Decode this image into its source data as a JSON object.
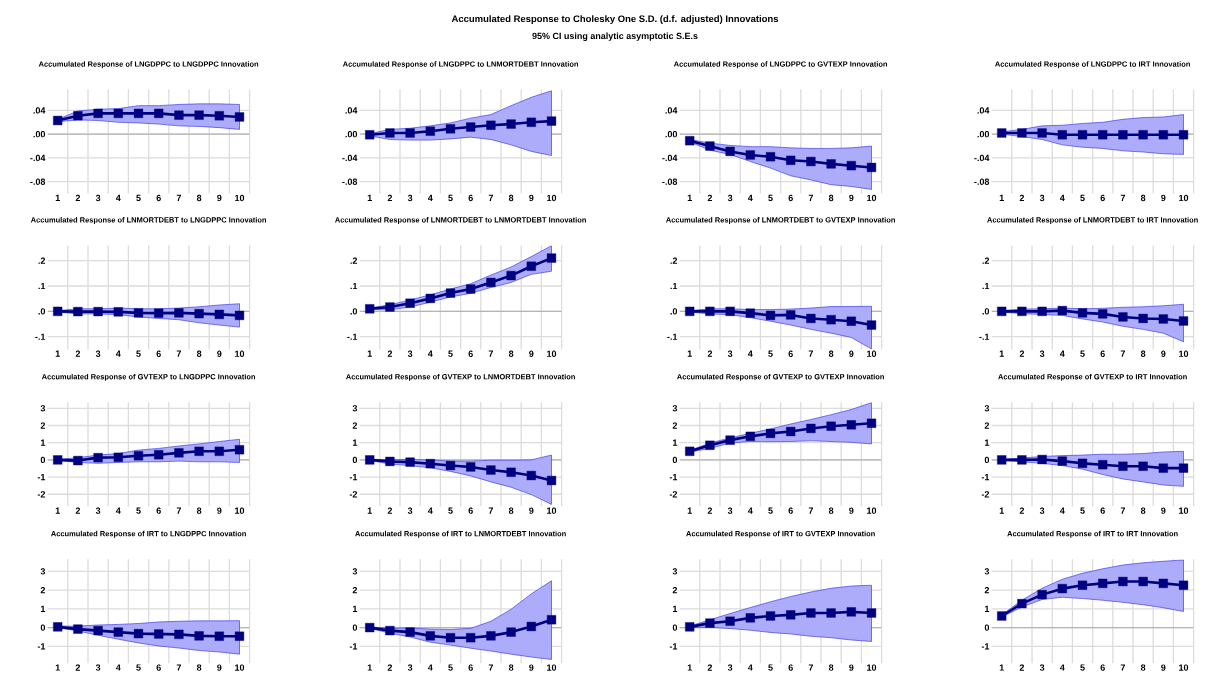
{
  "chart_data": [
    {
      "type": "other",
      "title": "Accumulated Response to Cholesky One S.D. (d.f. adjusted) Innovations",
      "subtitle": "95% CI using analytic asymptotic S.E.s"
    },
    {
      "type": "line",
      "title": "Accumulated Response of LNGDPPC to LNGDPPC Innovation",
      "categories": [
        "1",
        "2",
        "3",
        "4",
        "5",
        "6",
        "7",
        "8",
        "9",
        "10"
      ],
      "series": [
        {
          "color": "#000080",
          "values": [
            0.023,
            0.031,
            0.035,
            0.035,
            0.035,
            0.035,
            0.032,
            0.032,
            0.031,
            0.029
          ],
          "lower": [
            0.021,
            0.024,
            0.023,
            0.02,
            0.019,
            0.017,
            0.014,
            0.013,
            0.011,
            0.008
          ],
          "upper": [
            0.025,
            0.039,
            0.042,
            0.043,
            0.048,
            0.048,
            0.05,
            0.051,
            0.051,
            0.05
          ]
        }
      ],
      "ylim": [
        -0.1,
        0.075
      ],
      "yticks": [
        {
          "value": -0.08,
          "label": "-.08"
        },
        {
          "value": -0.04,
          "label": "-.04"
        },
        {
          "value": 0,
          "label": ".00"
        },
        {
          "value": 0.04,
          "label": ".04"
        }
      ],
      "grid": true,
      "marker": "square",
      "ref_lines": [
        {
          "axis": "y",
          "value": 0,
          "color": "#b4b4b4"
        }
      ]
    },
    {
      "type": "line",
      "title": "Accumulated Response of LNGDPPC to LNMORTDEBT Innovation",
      "categories": [
        "1",
        "2",
        "3",
        "4",
        "5",
        "6",
        "7",
        "8",
        "9",
        "10"
      ],
      "series": [
        {
          "color": "#000080",
          "values": [
            -0.001,
            0.002,
            0.002,
            0.005,
            0.009,
            0.012,
            0.015,
            0.017,
            0.02,
            0.022
          ],
          "lower": [
            -0.003,
            -0.009,
            -0.01,
            -0.01,
            -0.008,
            -0.005,
            -0.009,
            -0.018,
            -0.029,
            -0.036
          ],
          "upper": [
            0.001,
            0.008,
            0.01,
            0.014,
            0.019,
            0.027,
            0.033,
            0.048,
            0.062,
            0.073
          ]
        }
      ],
      "ylim": [
        -0.1,
        0.075
      ],
      "yticks": [
        {
          "value": -0.08,
          "label": "-.08"
        },
        {
          "value": -0.04,
          "label": "-.04"
        },
        {
          "value": 0,
          "label": ".00"
        },
        {
          "value": 0.04,
          "label": ".04"
        }
      ],
      "grid": true,
      "marker": "square",
      "ref_lines": [
        {
          "axis": "y",
          "value": 0,
          "color": "#b4b4b4"
        }
      ]
    },
    {
      "type": "line",
      "title": "Accumulated Response of LNGDPPC to GVTEXP Innovation",
      "categories": [
        "1",
        "2",
        "3",
        "4",
        "5",
        "6",
        "7",
        "8",
        "9",
        "10"
      ],
      "series": [
        {
          "color": "#000080",
          "values": [
            -0.011,
            -0.02,
            -0.029,
            -0.035,
            -0.038,
            -0.044,
            -0.046,
            -0.05,
            -0.053,
            -0.056
          ],
          "lower": [
            -0.013,
            -0.027,
            -0.034,
            -0.046,
            -0.057,
            -0.07,
            -0.077,
            -0.085,
            -0.088,
            -0.093
          ],
          "upper": [
            -0.009,
            -0.015,
            -0.019,
            -0.021,
            -0.021,
            -0.023,
            -0.024,
            -0.024,
            -0.023,
            -0.02
          ]
        }
      ],
      "ylim": [
        -0.1,
        0.075
      ],
      "yticks": [
        {
          "value": -0.08,
          "label": "-.08"
        },
        {
          "value": -0.04,
          "label": "-.04"
        },
        {
          "value": 0,
          "label": ".00"
        },
        {
          "value": 0.04,
          "label": ".04"
        }
      ],
      "grid": true,
      "marker": "square",
      "ref_lines": [
        {
          "axis": "y",
          "value": 0,
          "color": "#b4b4b4"
        }
      ]
    },
    {
      "type": "line",
      "title": "Accumulated Response of LNGDPPC to IRT Innovation",
      "categories": [
        "1",
        "2",
        "3",
        "4",
        "5",
        "6",
        "7",
        "8",
        "9",
        "10"
      ],
      "series": [
        {
          "color": "#000080",
          "values": [
            0.002,
            0.002,
            0.002,
            -0.001,
            -0.001,
            -0.001,
            -0.001,
            -0.001,
            -0.001,
            -0.001
          ],
          "lower": [
            0.0,
            -0.004,
            -0.009,
            -0.018,
            -0.022,
            -0.024,
            -0.028,
            -0.03,
            -0.033,
            -0.034
          ],
          "upper": [
            0.004,
            0.008,
            0.014,
            0.015,
            0.018,
            0.02,
            0.025,
            0.028,
            0.029,
            0.033
          ]
        }
      ],
      "ylim": [
        -0.1,
        0.075
      ],
      "yticks": [
        {
          "value": -0.08,
          "label": "-.08"
        },
        {
          "value": -0.04,
          "label": "-.04"
        },
        {
          "value": 0,
          "label": ".00"
        },
        {
          "value": 0.04,
          "label": ".04"
        }
      ],
      "grid": true,
      "marker": "square",
      "ref_lines": [
        {
          "axis": "y",
          "value": 0,
          "color": "#b4b4b4"
        }
      ]
    },
    {
      "type": "line",
      "title": "Accumulated Response of LNMORTDEBT to LNGDPPC Innovation",
      "categories": [
        "1",
        "2",
        "3",
        "4",
        "5",
        "6",
        "7",
        "8",
        "9",
        "10"
      ],
      "series": [
        {
          "color": "#000080",
          "values": [
            0.0,
            -0.001,
            -0.001,
            -0.002,
            -0.006,
            -0.007,
            -0.006,
            -0.009,
            -0.012,
            -0.016
          ],
          "lower": [
            -0.003,
            -0.01,
            -0.01,
            -0.013,
            -0.022,
            -0.028,
            -0.033,
            -0.045,
            -0.054,
            -0.062
          ],
          "upper": [
            0.003,
            0.01,
            0.01,
            0.013,
            0.01,
            0.01,
            0.013,
            0.018,
            0.025,
            0.03
          ]
        }
      ],
      "ylim": [
        -0.15,
        0.26
      ],
      "yticks": [
        {
          "value": -0.1,
          "label": "-.1"
        },
        {
          "value": 0,
          "label": ".0"
        },
        {
          "value": 0.1,
          "label": ".1"
        },
        {
          "value": 0.2,
          "label": ".2"
        }
      ],
      "grid": true,
      "marker": "square",
      "ref_lines": [
        {
          "axis": "y",
          "value": 0,
          "color": "#b4b4b4"
        }
      ]
    },
    {
      "type": "line",
      "title": "Accumulated Response of LNMORTDEBT to LNMORTDEBT Innovation",
      "categories": [
        "1",
        "2",
        "3",
        "4",
        "5",
        "6",
        "7",
        "8",
        "9",
        "10"
      ],
      "series": [
        {
          "color": "#000080",
          "values": [
            0.01,
            0.017,
            0.032,
            0.051,
            0.072,
            0.088,
            0.114,
            0.141,
            0.178,
            0.21
          ],
          "lower": [
            0.007,
            0.006,
            0.017,
            0.036,
            0.057,
            0.071,
            0.094,
            0.114,
            0.146,
            0.158
          ],
          "upper": [
            0.013,
            0.026,
            0.045,
            0.065,
            0.088,
            0.109,
            0.143,
            0.175,
            0.216,
            0.259
          ]
        }
      ],
      "ylim": [
        -0.15,
        0.26
      ],
      "yticks": [
        {
          "value": -0.1,
          "label": "-.1"
        },
        {
          "value": 0,
          "label": ".0"
        },
        {
          "value": 0.1,
          "label": ".1"
        },
        {
          "value": 0.2,
          "label": ".2"
        }
      ],
      "grid": true,
      "marker": "square",
      "ref_lines": [
        {
          "axis": "y",
          "value": 0,
          "color": "#b4b4b4"
        }
      ]
    },
    {
      "type": "line",
      "title": "Accumulated Response of LNMORTDEBT to GVTEXP Innovation",
      "categories": [
        "1",
        "2",
        "3",
        "4",
        "5",
        "6",
        "7",
        "8",
        "9",
        "10"
      ],
      "series": [
        {
          "color": "#000080",
          "values": [
            0.0,
            0.0,
            0.0,
            -0.007,
            -0.016,
            -0.014,
            -0.028,
            -0.033,
            -0.039,
            -0.054
          ],
          "lower": [
            -0.003,
            -0.01,
            -0.013,
            -0.025,
            -0.039,
            -0.054,
            -0.071,
            -0.086,
            -0.103,
            -0.148
          ],
          "upper": [
            0.003,
            0.01,
            0.01,
            0.007,
            0.007,
            0.009,
            0.013,
            0.019,
            0.019,
            0.02
          ]
        }
      ],
      "ylim": [
        -0.15,
        0.26
      ],
      "yticks": [
        {
          "value": -0.1,
          "label": "-.1"
        },
        {
          "value": 0,
          "label": ".0"
        },
        {
          "value": 0.1,
          "label": ".1"
        },
        {
          "value": 0.2,
          "label": ".2"
        }
      ],
      "grid": true,
      "marker": "square",
      "ref_lines": [
        {
          "axis": "y",
          "value": 0,
          "color": "#b4b4b4"
        }
      ]
    },
    {
      "type": "line",
      "title": "Accumulated Response of LNMORTDEBT to IRT Innovation",
      "categories": [
        "1",
        "2",
        "3",
        "4",
        "5",
        "6",
        "7",
        "8",
        "9",
        "10"
      ],
      "series": [
        {
          "color": "#000080",
          "values": [
            0.0,
            0.0,
            0.0,
            0.003,
            -0.006,
            -0.01,
            -0.022,
            -0.028,
            -0.03,
            -0.038
          ],
          "lower": [
            -0.003,
            -0.009,
            -0.012,
            -0.016,
            -0.03,
            -0.042,
            -0.059,
            -0.071,
            -0.086,
            -0.12
          ],
          "upper": [
            0.003,
            0.009,
            0.01,
            0.013,
            0.01,
            0.012,
            0.016,
            0.018,
            0.022,
            0.028
          ]
        }
      ],
      "ylim": [
        -0.15,
        0.26
      ],
      "yticks": [
        {
          "value": -0.1,
          "label": "-.1"
        },
        {
          "value": 0,
          "label": ".0"
        },
        {
          "value": 0.1,
          "label": ".1"
        },
        {
          "value": 0.2,
          "label": ".2"
        }
      ],
      "grid": true,
      "marker": "square",
      "ref_lines": [
        {
          "axis": "y",
          "value": 0,
          "color": "#b4b4b4"
        }
      ]
    },
    {
      "type": "line",
      "title": "Accumulated Response of GVTEXP to LNGDPPC Innovation",
      "categories": [
        "1",
        "2",
        "3",
        "4",
        "5",
        "6",
        "7",
        "8",
        "9",
        "10"
      ],
      "series": [
        {
          "color": "#000080",
          "values": [
            0.0,
            -0.04,
            0.13,
            0.15,
            0.24,
            0.3,
            0.41,
            0.5,
            0.5,
            0.59
          ],
          "lower": [
            -0.03,
            -0.15,
            -0.2,
            -0.15,
            -0.11,
            -0.11,
            -0.07,
            -0.11,
            -0.11,
            -0.15
          ],
          "upper": [
            0.03,
            0.13,
            0.28,
            0.37,
            0.57,
            0.67,
            0.81,
            0.93,
            1.07,
            1.2
          ]
        }
      ],
      "ylim": [
        -2.7,
        3.35
      ],
      "yticks": [
        -2,
        -1,
        0,
        1,
        2,
        3
      ],
      "grid": true,
      "marker": "square",
      "ref_lines": [
        {
          "axis": "y",
          "value": 0,
          "color": "#b4b4b4"
        }
      ]
    },
    {
      "type": "line",
      "title": "Accumulated Response of GVTEXP to LNMORTDEBT Innovation",
      "categories": [
        "1",
        "2",
        "3",
        "4",
        "5",
        "6",
        "7",
        "8",
        "9",
        "10"
      ],
      "series": [
        {
          "color": "#000080",
          "values": [
            0.0,
            -0.09,
            -0.13,
            -0.22,
            -0.33,
            -0.41,
            -0.59,
            -0.72,
            -0.91,
            -1.2
          ],
          "lower": [
            -0.03,
            -0.24,
            -0.33,
            -0.46,
            -0.67,
            -0.93,
            -1.28,
            -1.59,
            -2.02,
            -2.59
          ],
          "upper": [
            0.03,
            0.02,
            0.02,
            0.0,
            -0.07,
            -0.07,
            -0.02,
            -0.02,
            0.0,
            0.28
          ]
        }
      ],
      "ylim": [
        -2.7,
        3.35
      ],
      "yticks": [
        -2,
        -1,
        0,
        1,
        2,
        3
      ],
      "grid": true,
      "marker": "square",
      "ref_lines": [
        {
          "axis": "y",
          "value": 0,
          "color": "#b4b4b4"
        }
      ]
    },
    {
      "type": "line",
      "title": "Accumulated Response of GVTEXP to GVTEXP Innovation",
      "categories": [
        "1",
        "2",
        "3",
        "4",
        "5",
        "6",
        "7",
        "8",
        "9",
        "10"
      ],
      "series": [
        {
          "color": "#000080",
          "values": [
            0.5,
            0.85,
            1.15,
            1.37,
            1.54,
            1.65,
            1.83,
            1.96,
            2.04,
            2.13
          ],
          "lower": [
            0.45,
            0.67,
            0.98,
            1.07,
            1.06,
            1.07,
            1.11,
            1.07,
            1.02,
            0.93
          ],
          "upper": [
            0.55,
            0.98,
            1.28,
            1.55,
            1.8,
            2.09,
            2.35,
            2.63,
            2.93,
            3.33
          ]
        }
      ],
      "ylim": [
        -2.7,
        3.35
      ],
      "yticks": [
        -2,
        -1,
        0,
        1,
        2,
        3
      ],
      "grid": true,
      "marker": "square",
      "ref_lines": [
        {
          "axis": "y",
          "value": 0,
          "color": "#b4b4b4"
        }
      ]
    },
    {
      "type": "line",
      "title": "Accumulated Response of GVTEXP to IRT Innovation",
      "categories": [
        "1",
        "2",
        "3",
        "4",
        "5",
        "6",
        "7",
        "8",
        "9",
        "10"
      ],
      "series": [
        {
          "color": "#000080",
          "values": [
            0.0,
            0.0,
            0.02,
            -0.07,
            -0.2,
            -0.28,
            -0.37,
            -0.37,
            -0.48,
            -0.48
          ],
          "lower": [
            -0.03,
            -0.11,
            -0.2,
            -0.33,
            -0.54,
            -0.85,
            -1.11,
            -1.28,
            -1.46,
            -1.54
          ],
          "upper": [
            0.03,
            0.11,
            0.2,
            0.25,
            0.28,
            0.33,
            0.33,
            0.37,
            0.46,
            0.5
          ]
        }
      ],
      "ylim": [
        -2.7,
        3.35
      ],
      "yticks": [
        -2,
        -1,
        0,
        1,
        2,
        3
      ],
      "grid": true,
      "marker": "square",
      "ref_lines": [
        {
          "axis": "y",
          "value": 0,
          "color": "#b4b4b4"
        }
      ]
    },
    {
      "type": "line",
      "title": "Accumulated Response of IRT to LNGDPPC Innovation",
      "categories": [
        "1",
        "2",
        "3",
        "4",
        "5",
        "6",
        "7",
        "8",
        "9",
        "10"
      ],
      "series": [
        {
          "color": "#000080",
          "values": [
            0.04,
            -0.08,
            -0.16,
            -0.24,
            -0.32,
            -0.34,
            -0.36,
            -0.44,
            -0.46,
            -0.46
          ],
          "lower": [
            0.0,
            -0.18,
            -0.41,
            -0.62,
            -0.82,
            -0.98,
            -1.09,
            -1.22,
            -1.3,
            -1.42
          ],
          "upper": [
            0.08,
            0.08,
            0.14,
            0.17,
            0.22,
            0.3,
            0.34,
            0.36,
            0.36,
            0.37
          ]
        }
      ],
      "ylim": [
        -1.9,
        3.65
      ],
      "yticks": [
        -1,
        0,
        1,
        2,
        3
      ],
      "grid": true,
      "marker": "square",
      "ref_lines": [
        {
          "axis": "y",
          "value": 0,
          "color": "#b4b4b4"
        }
      ]
    },
    {
      "type": "line",
      "title": "Accumulated Response of IRT to LNMORTDEBT Innovation",
      "categories": [
        "1",
        "2",
        "3",
        "4",
        "5",
        "6",
        "7",
        "8",
        "9",
        "10"
      ],
      "series": [
        {
          "color": "#000080",
          "values": [
            0.0,
            -0.16,
            -0.24,
            -0.44,
            -0.54,
            -0.54,
            -0.44,
            -0.24,
            0.06,
            0.42
          ],
          "lower": [
            -0.04,
            -0.3,
            -0.5,
            -0.78,
            -0.93,
            -1.1,
            -1.25,
            -1.42,
            -1.57,
            -1.7
          ],
          "upper": [
            0.04,
            -0.04,
            -0.02,
            -0.08,
            -0.1,
            -0.04,
            0.34,
            0.98,
            1.8,
            2.5
          ]
        }
      ],
      "ylim": [
        -1.9,
        3.65
      ],
      "yticks": [
        -1,
        0,
        1,
        2,
        3
      ],
      "grid": true,
      "marker": "square",
      "ref_lines": [
        {
          "axis": "y",
          "value": 0,
          "color": "#b4b4b4"
        }
      ]
    },
    {
      "type": "line",
      "title": "Accumulated Response of IRT to GVTEXP Innovation",
      "categories": [
        "1",
        "2",
        "3",
        "4",
        "5",
        "6",
        "7",
        "8",
        "9",
        "10"
      ],
      "series": [
        {
          "color": "#000080",
          "values": [
            0.04,
            0.24,
            0.34,
            0.52,
            0.62,
            0.68,
            0.78,
            0.78,
            0.84,
            0.78
          ],
          "lower": [
            0.0,
            0.02,
            -0.05,
            -0.14,
            -0.26,
            -0.34,
            -0.46,
            -0.54,
            -0.66,
            -0.74
          ],
          "upper": [
            0.08,
            0.42,
            0.75,
            1.07,
            1.38,
            1.66,
            1.9,
            2.1,
            2.22,
            2.26
          ]
        }
      ],
      "ylim": [
        -1.9,
        3.65
      ],
      "yticks": [
        -1,
        0,
        1,
        2,
        3
      ],
      "grid": true,
      "marker": "square",
      "ref_lines": [
        {
          "axis": "y",
          "value": 0,
          "color": "#b4b4b4"
        }
      ]
    },
    {
      "type": "line",
      "title": "Accumulated Response of IRT to IRT Innovation",
      "categories": [
        "1",
        "2",
        "3",
        "4",
        "5",
        "6",
        "7",
        "8",
        "9",
        "10"
      ],
      "series": [
        {
          "color": "#000080",
          "values": [
            0.62,
            1.28,
            1.76,
            2.08,
            2.26,
            2.36,
            2.46,
            2.46,
            2.36,
            2.26
          ],
          "lower": [
            0.56,
            1.1,
            1.5,
            1.62,
            1.55,
            1.46,
            1.35,
            1.22,
            1.06,
            0.86
          ],
          "upper": [
            0.68,
            1.46,
            2.1,
            2.58,
            2.9,
            3.14,
            3.34,
            3.46,
            3.54,
            3.61
          ]
        }
      ],
      "ylim": [
        -1.9,
        3.65
      ],
      "yticks": [
        -1,
        0,
        1,
        2,
        3
      ],
      "grid": true,
      "marker": "square",
      "ref_lines": [
        {
          "axis": "y",
          "value": 0,
          "color": "#b4b4b4"
        }
      ]
    }
  ]
}
